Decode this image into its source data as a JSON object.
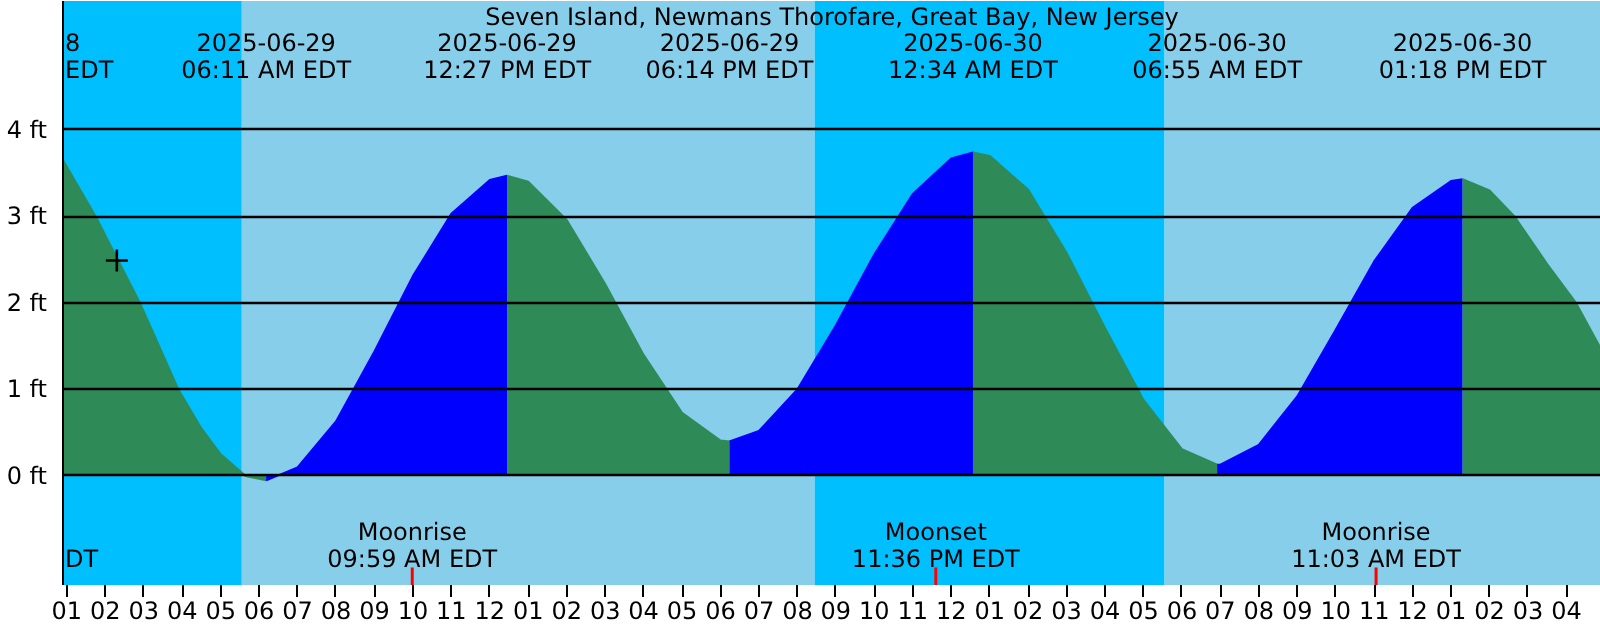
{
  "chart_data": {
    "type": "area",
    "title": "Seven Island, Newmans Thorofare, Great Bay, New Jersey",
    "xlim": [
      "2025-06-29T00:54",
      "2025-06-30T16:54"
    ],
    "ylim": [
      -1.26,
      5.49
    ],
    "xticks": [
      {
        "value": "2025-06-29T01:00",
        "label": "01"
      },
      {
        "value": "2025-06-29T02:00",
        "label": "02"
      },
      {
        "value": "2025-06-29T03:00",
        "label": "03"
      },
      {
        "value": "2025-06-29T04:00",
        "label": "04"
      },
      {
        "value": "2025-06-29T05:00",
        "label": "05"
      },
      {
        "value": "2025-06-29T06:00",
        "label": "06"
      },
      {
        "value": "2025-06-29T07:00",
        "label": "07"
      },
      {
        "value": "2025-06-29T08:00",
        "label": "08"
      },
      {
        "value": "2025-06-29T09:00",
        "label": "09"
      },
      {
        "value": "2025-06-29T10:00",
        "label": "10"
      },
      {
        "value": "2025-06-29T11:00",
        "label": "11"
      },
      {
        "value": "2025-06-29T12:00",
        "label": "12"
      },
      {
        "value": "2025-06-29T13:00",
        "label": "01"
      },
      {
        "value": "2025-06-29T14:00",
        "label": "02"
      },
      {
        "value": "2025-06-29T15:00",
        "label": "03"
      },
      {
        "value": "2025-06-29T16:00",
        "label": "04"
      },
      {
        "value": "2025-06-29T17:00",
        "label": "05"
      },
      {
        "value": "2025-06-29T18:00",
        "label": "06"
      },
      {
        "value": "2025-06-29T19:00",
        "label": "07"
      },
      {
        "value": "2025-06-29T20:00",
        "label": "08"
      },
      {
        "value": "2025-06-29T21:00",
        "label": "09"
      },
      {
        "value": "2025-06-29T22:00",
        "label": "10"
      },
      {
        "value": "2025-06-29T23:00",
        "label": "11"
      },
      {
        "value": "2025-06-30T00:00",
        "label": "12"
      },
      {
        "value": "2025-06-30T01:00",
        "label": "01"
      },
      {
        "value": "2025-06-30T02:00",
        "label": "02"
      },
      {
        "value": "2025-06-30T03:00",
        "label": "03"
      },
      {
        "value": "2025-06-30T04:00",
        "label": "04"
      },
      {
        "value": "2025-06-30T05:00",
        "label": "05"
      },
      {
        "value": "2025-06-30T06:00",
        "label": "06"
      },
      {
        "value": "2025-06-30T07:00",
        "label": "07"
      },
      {
        "value": "2025-06-30T08:00",
        "label": "08"
      },
      {
        "value": "2025-06-30T09:00",
        "label": "09"
      },
      {
        "value": "2025-06-30T10:00",
        "label": "10"
      },
      {
        "value": "2025-06-30T11:00",
        "label": "11"
      },
      {
        "value": "2025-06-30T12:00",
        "label": "12"
      },
      {
        "value": "2025-06-30T13:00",
        "label": "01"
      },
      {
        "value": "2025-06-30T14:00",
        "label": "02"
      },
      {
        "value": "2025-06-30T15:00",
        "label": "03"
      },
      {
        "value": "2025-06-30T16:00",
        "label": "04"
      }
    ],
    "yticks": [
      {
        "value": 0,
        "label": "0 ft"
      },
      {
        "value": 1,
        "label": "1 ft"
      },
      {
        "value": 2,
        "label": "2 ft"
      },
      {
        "value": 3,
        "label": "3 ft"
      },
      {
        "value": 4,
        "label": "4 ft"
      }
    ],
    "grid": "y",
    "bands": [
      {
        "axis": "x",
        "from": "2025-06-29T00:54",
        "to": "2025-06-29T05:33",
        "color": "#00bfff"
      },
      {
        "axis": "x",
        "from": "2025-06-29T05:33",
        "to": "2025-06-29T20:27",
        "color": "#87ceeb"
      },
      {
        "axis": "x",
        "from": "2025-06-29T20:27",
        "to": "2025-06-30T05:33",
        "color": "#00bfff"
      },
      {
        "axis": "x",
        "from": "2025-06-30T05:33",
        "to": "2025-06-30T16:54",
        "color": "#87ceeb"
      }
    ],
    "ref_lines": [
      {
        "axis": "x",
        "value": "2025-06-29T09:59",
        "label": "Moonrise\n09:59 AM EDT",
        "color": "#ff0000"
      },
      {
        "axis": "x",
        "value": "2025-06-29T23:36",
        "label": "Moonset\n11:36 PM EDT",
        "color": "#ff0000"
      },
      {
        "axis": "x",
        "value": "2025-06-30T11:03",
        "label": "Moonrise\n11:03 AM EDT",
        "color": "#ff0000"
      }
    ],
    "series": [
      {
        "color": "#2e8b57",
        "x": [
          "2025-06-29T00:54",
          "2025-06-29T01:45",
          "2025-06-29T02:54",
          "2025-06-29T03:54",
          "2025-06-29T04:30",
          "2025-06-29T05:00",
          "2025-06-29T05:39",
          "2025-06-29T06:11"
        ],
        "values": [
          3.65,
          3.0,
          2.0,
          1.0,
          0.55,
          0.25,
          0.0,
          -0.05
        ]
      },
      {
        "color": "#0000ff",
        "x": [
          "2025-06-29T06:11",
          "2025-06-29T07:00",
          "2025-06-29T08:00",
          "2025-06-29T09:00",
          "2025-06-29T10:00",
          "2025-06-29T11:00",
          "2025-06-29T12:00",
          "2025-06-29T12:27"
        ],
        "values": [
          -0.05,
          0.1,
          0.63,
          1.44,
          2.31,
          3.03,
          3.42,
          3.47
        ]
      },
      {
        "color": "#2e8b57",
        "x": [
          "2025-06-29T12:27",
          "2025-06-29T13:00",
          "2025-06-29T14:00",
          "2025-06-29T15:00",
          "2025-06-29T16:00",
          "2025-06-29T17:00",
          "2025-06-29T18:00",
          "2025-06-29T18:14"
        ],
        "values": [
          3.47,
          3.4,
          2.96,
          2.22,
          1.4,
          0.73,
          0.41,
          0.4
        ]
      },
      {
        "color": "#0000ff",
        "x": [
          "2025-06-29T18:14",
          "2025-06-29T19:00",
          "2025-06-29T20:00",
          "2025-06-29T21:00",
          "2025-06-29T22:00",
          "2025-06-29T23:00",
          "2025-06-30T00:00",
          "2025-06-30T00:34"
        ],
        "values": [
          0.4,
          0.52,
          1.0,
          1.74,
          2.56,
          3.26,
          3.67,
          3.74
        ]
      },
      {
        "color": "#2e8b57",
        "x": [
          "2025-06-30T00:34",
          "2025-06-30T01:00",
          "2025-06-30T02:00",
          "2025-06-30T03:00",
          "2025-06-30T04:00",
          "2025-06-30T05:00",
          "2025-06-30T06:00",
          "2025-06-30T06:55"
        ],
        "values": [
          3.74,
          3.7,
          3.31,
          2.58,
          1.71,
          0.88,
          0.31,
          0.13
        ]
      },
      {
        "color": "#0000ff",
        "x": [
          "2025-06-30T06:55",
          "2025-06-30T07:00",
          "2025-06-30T08:00",
          "2025-06-30T09:00",
          "2025-06-30T10:00",
          "2025-06-30T11:00",
          "2025-06-30T12:00",
          "2025-06-30T13:00",
          "2025-06-30T13:18"
        ],
        "values": [
          0.13,
          0.13,
          0.36,
          0.92,
          1.69,
          2.48,
          3.1,
          3.41,
          3.43
        ]
      },
      {
        "color": "#2e8b57",
        "x": [
          "2025-06-30T13:18",
          "2025-06-30T14:00",
          "2025-06-30T14:39",
          "2025-06-30T15:30",
          "2025-06-30T16:15",
          "2025-06-30T16:54"
        ],
        "values": [
          3.43,
          3.3,
          3.0,
          2.45,
          2.0,
          1.47
        ]
      },
      {
        "type": "scatter",
        "color": "#000000",
        "marker": "cross",
        "x": [
          "2025-06-29T02:18"
        ],
        "values": [
          2.49
        ]
      }
    ],
    "annotations": [
      "8\nEDT",
      "2025-06-29\n06:11 AM EDT",
      "2025-06-29\n12:27 PM EDT",
      "2025-06-29\n06:14 PM EDT",
      "2025-06-30\n12:34 AM EDT",
      "2025-06-30\n06:55 AM EDT",
      "2025-06-30\n01:18 PM EDT",
      "DT"
    ]
  }
}
